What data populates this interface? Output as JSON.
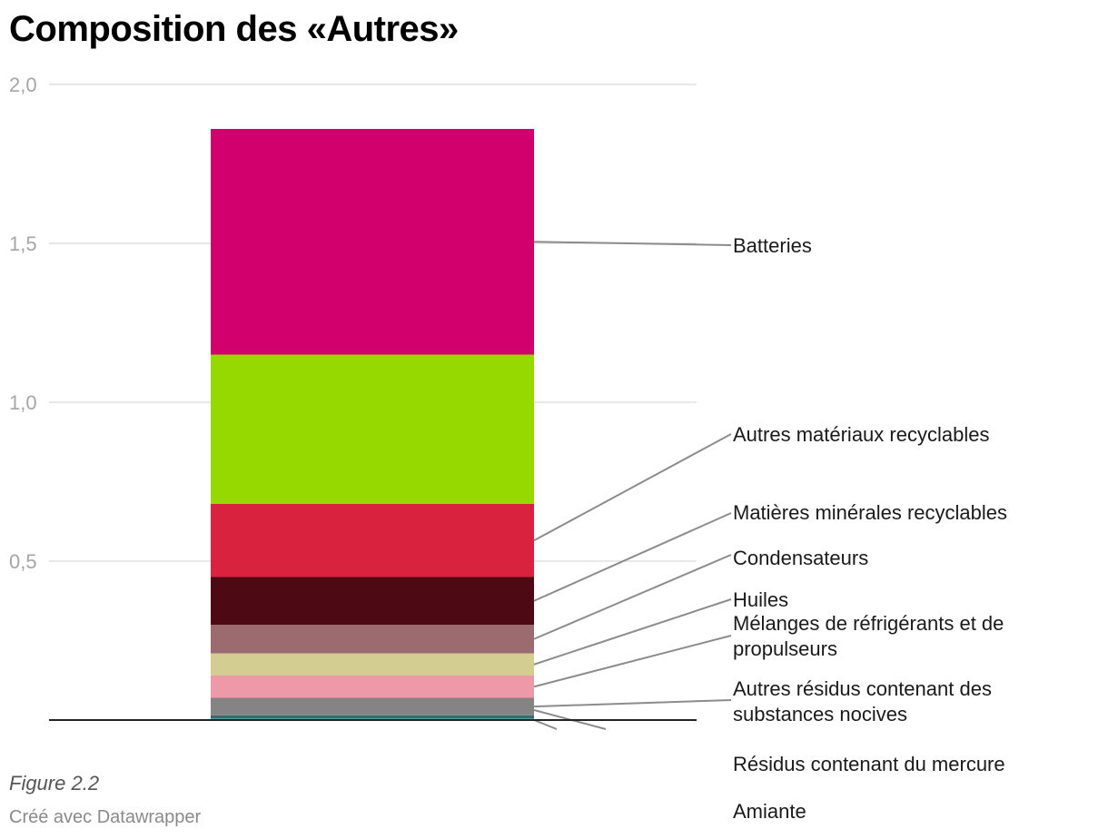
{
  "chart_data": {
    "type": "bar",
    "stacked": true,
    "title": "Composition des «Autres»",
    "categories": [
      ""
    ],
    "ylim": [
      0,
      2.0
    ],
    "yticks": [
      "0,5",
      "1,0",
      "1,5",
      "2,0"
    ],
    "ytick_values": [
      0.5,
      1.0,
      1.5,
      2.0
    ],
    "grid": true,
    "series": [
      {
        "name": "Amiante",
        "value": 0.005,
        "color": "#2ea3b8"
      },
      {
        "name": "Résidus contenant du mercure",
        "value": 0.01,
        "color": "#3a6b6b"
      },
      {
        "name": "Autres résidus contenant des substances nocives",
        "value": 0.055,
        "color": "#848484"
      },
      {
        "name": "Mélanges de réfrigérants et de propulseurs",
        "value": 0.07,
        "color": "#ee99a8"
      },
      {
        "name": "Huiles",
        "value": 0.07,
        "color": "#d4cd91"
      },
      {
        "name": "Condensateurs",
        "value": 0.09,
        "color": "#9b6b70"
      },
      {
        "name": "Matières minérales recyclables",
        "value": 0.15,
        "color": "#4e0a14"
      },
      {
        "name": "Autres matériaux recyclables",
        "value": 0.23,
        "color": "#d9223d"
      },
      {
        "name": "Autres matériaux recyclables",
        "value": 0.47,
        "color": "#96d900"
      },
      {
        "name": "Batteries",
        "value": 0.71,
        "color": "#d1006d"
      }
    ]
  },
  "figure_note": "Figure  2.2",
  "credit": "Créé avec Datawrapper"
}
